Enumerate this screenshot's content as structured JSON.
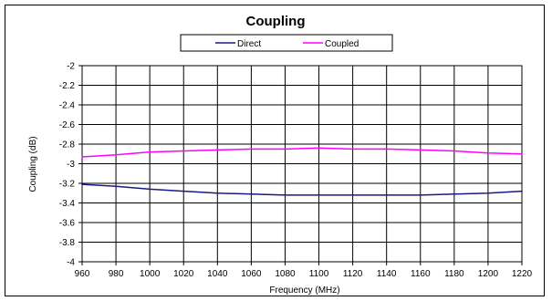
{
  "chart_data": {
    "type": "line",
    "title": "Coupling",
    "xlabel": "Frequency (MHz)",
    "ylabel": "Coupling (dB)",
    "xlim": [
      960,
      1220
    ],
    "ylim": [
      -4,
      -2
    ],
    "x_ticks": [
      960,
      980,
      1000,
      1020,
      1040,
      1060,
      1080,
      1100,
      1120,
      1140,
      1160,
      1180,
      1200,
      1220
    ],
    "y_ticks": [
      -2,
      -2.2,
      -2.4,
      -2.6,
      -2.8,
      -3,
      -3.2,
      -3.4,
      -3.6,
      -3.8,
      -4
    ],
    "grid": true,
    "legend_position": "top",
    "x": [
      960,
      980,
      1000,
      1020,
      1040,
      1060,
      1080,
      1100,
      1120,
      1140,
      1160,
      1180,
      1200,
      1220
    ],
    "series": [
      {
        "name": "Direct",
        "color": "#1a1a80",
        "values": [
          -3.21,
          -3.23,
          -3.26,
          -3.28,
          -3.3,
          -3.31,
          -3.32,
          -3.32,
          -3.32,
          -3.32,
          -3.32,
          -3.31,
          -3.3,
          -3.28
        ]
      },
      {
        "name": "Coupled",
        "color": "#ff00ff",
        "values": [
          -2.93,
          -2.91,
          -2.88,
          -2.87,
          -2.86,
          -2.85,
          -2.85,
          -2.84,
          -2.85,
          -2.85,
          -2.86,
          -2.87,
          -2.89,
          -2.9
        ]
      }
    ]
  }
}
